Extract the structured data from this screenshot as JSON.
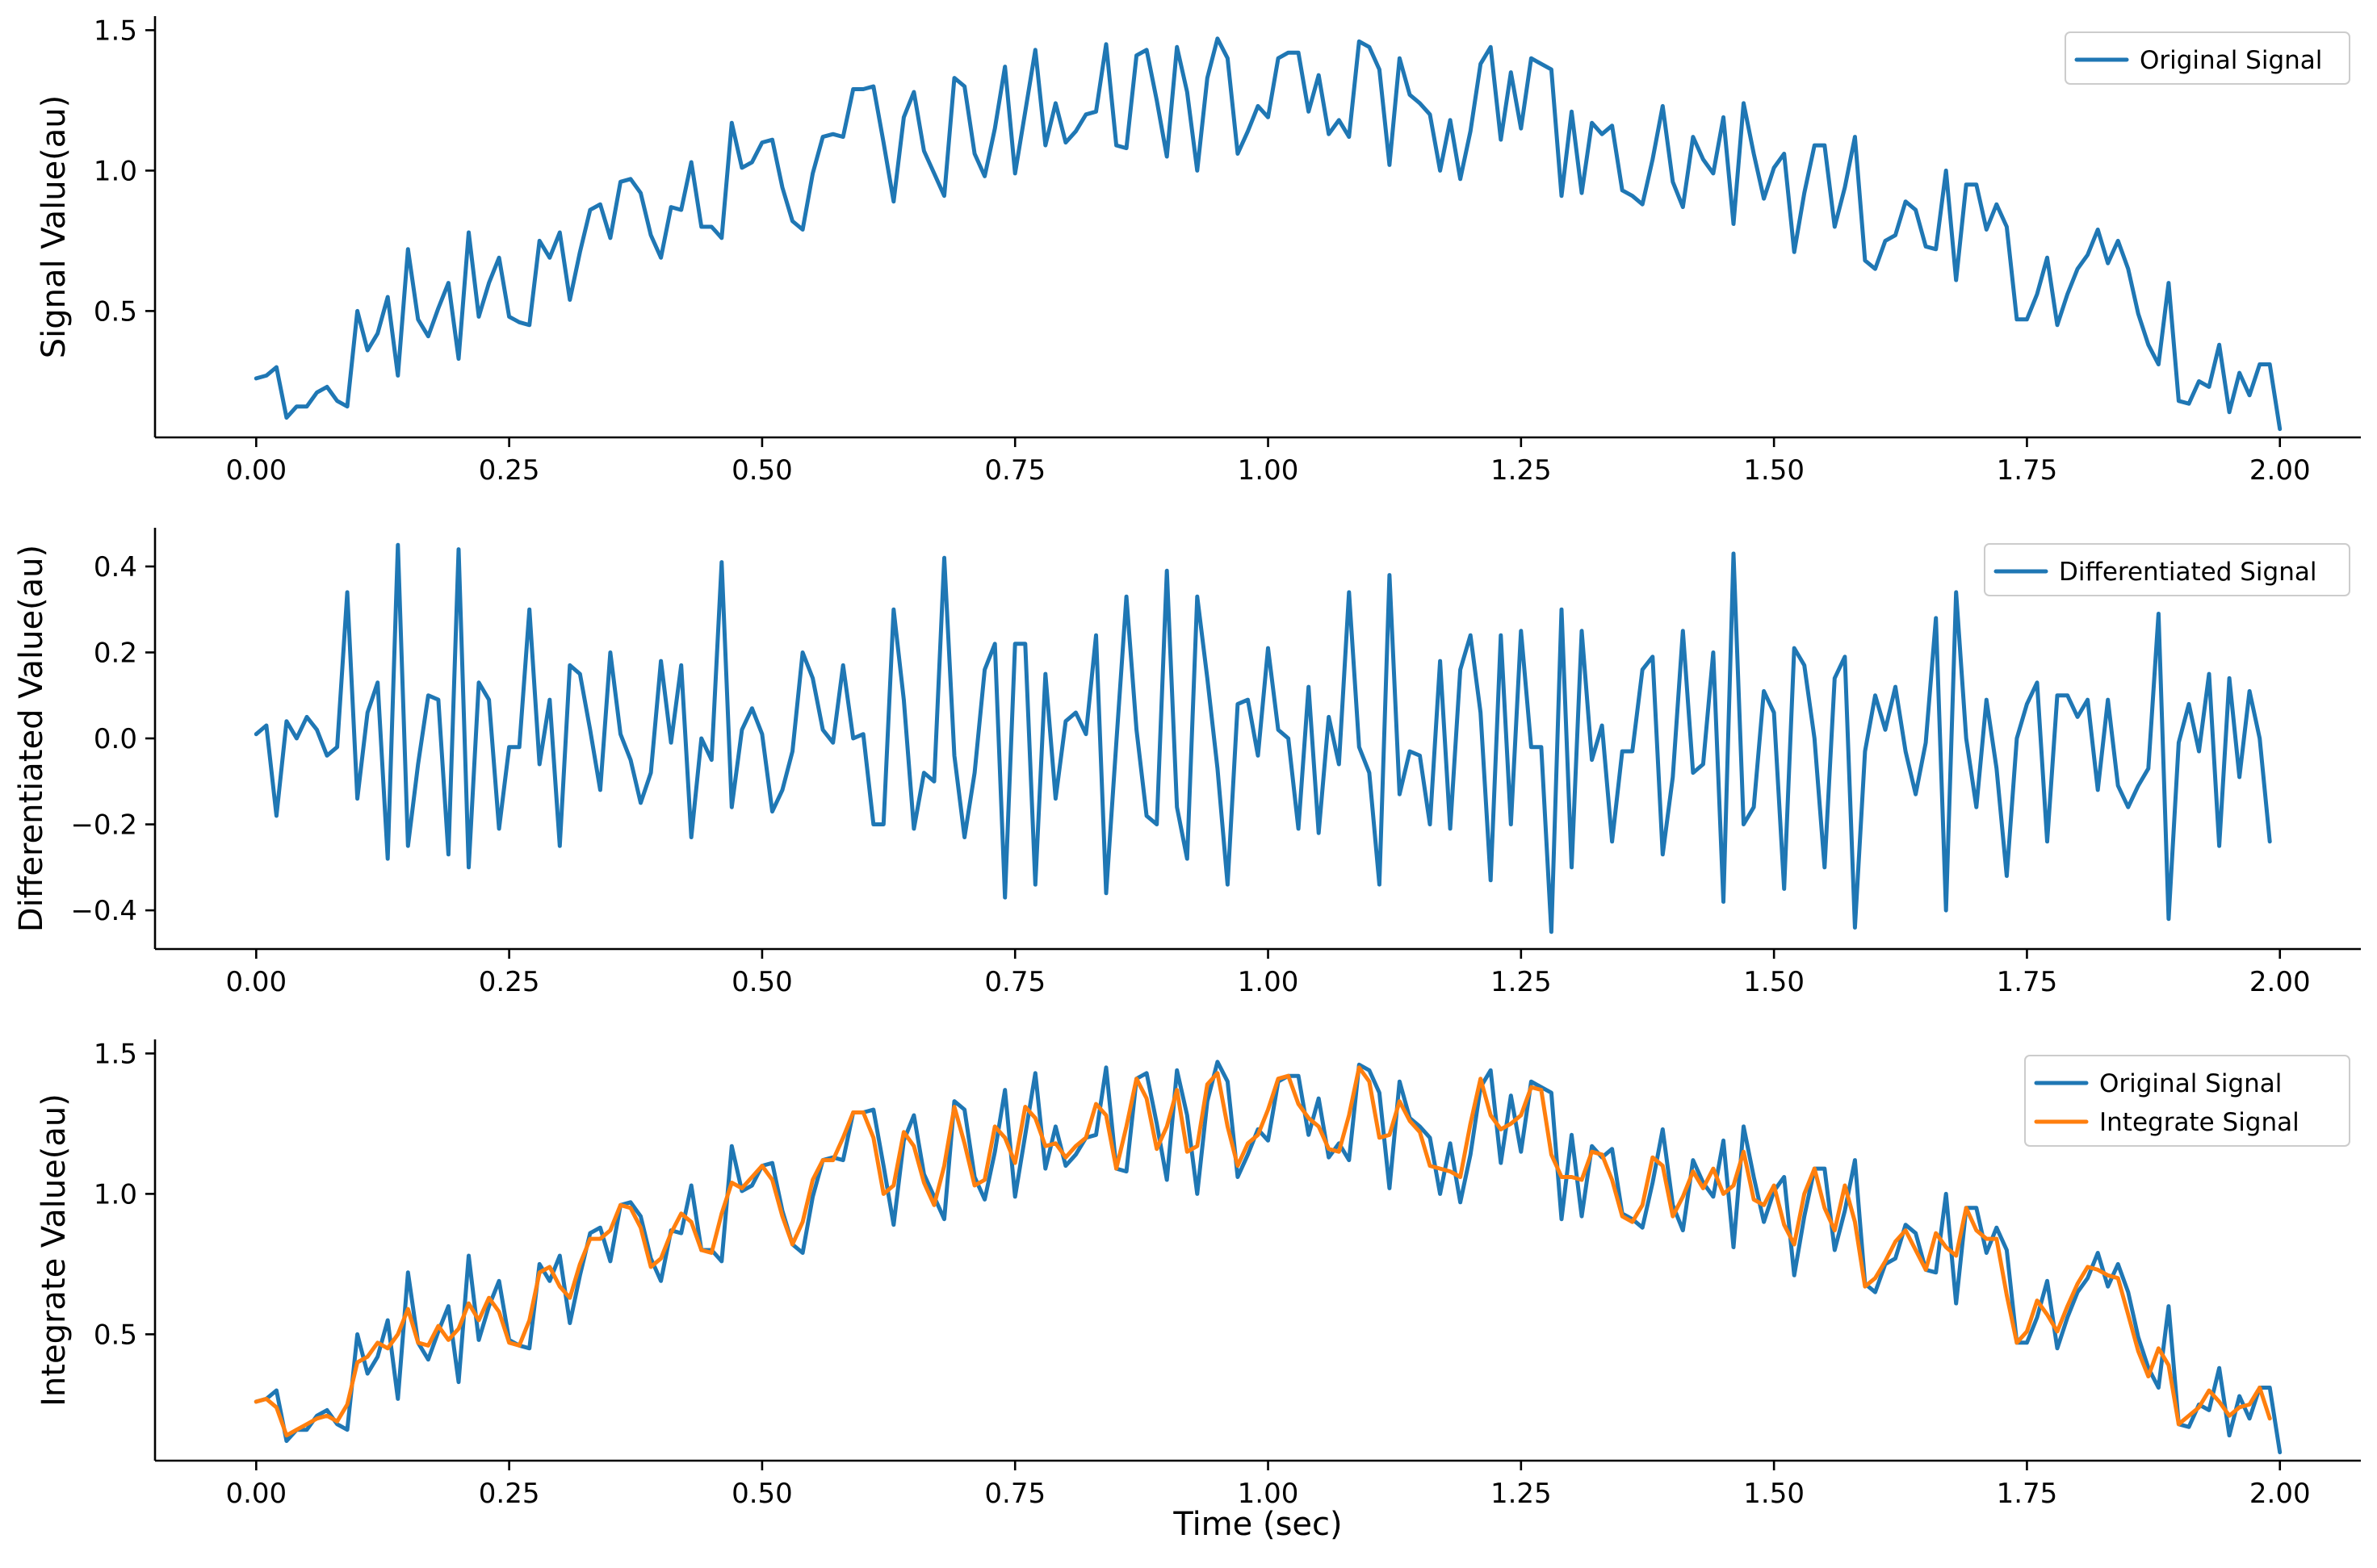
{
  "colors": {
    "blue": "#1f77b4",
    "orange": "#ff7f0e"
  },
  "chart_data": [
    {
      "type": "line",
      "title": "",
      "xlabel": "",
      "ylabel": "Signal Value(au)",
      "xlim": [
        -0.1,
        2.08
      ],
      "ylim": [
        0.05,
        1.55
      ],
      "xticks": [
        0.0,
        0.25,
        0.5,
        0.75,
        1.0,
        1.25,
        1.5,
        1.75,
        2.0
      ],
      "xtick_labels": [
        "0.00",
        "0.25",
        "0.50",
        "0.75",
        "1.00",
        "1.25",
        "1.50",
        "1.75",
        "2.00"
      ],
      "yticks": [
        0.5,
        1.0,
        1.5
      ],
      "ytick_labels": [
        "0.5",
        "1.0",
        "1.5"
      ],
      "legend_position": "top-right",
      "series": [
        {
          "name": "Original Signal",
          "color": "#1f77b4",
          "x_start": 0.0,
          "x_step": 0.01,
          "values": [
            0.26,
            0.27,
            0.3,
            0.12,
            0.16,
            0.16,
            0.21,
            0.23,
            0.18,
            0.16,
            0.5,
            0.36,
            0.42,
            0.55,
            0.27,
            0.72,
            0.47,
            0.41,
            0.51,
            0.6,
            0.33,
            0.78,
            0.48,
            0.6,
            0.69,
            0.48,
            0.46,
            0.45,
            0.75,
            0.69,
            0.78,
            0.54,
            0.71,
            0.86,
            0.88,
            0.76,
            0.96,
            0.97,
            0.92,
            0.77,
            0.69,
            0.87,
            0.86,
            1.03,
            0.8,
            0.8,
            0.76,
            1.17,
            1.01,
            1.03,
            1.1,
            1.11,
            0.94,
            0.82,
            0.79,
            0.99,
            1.12,
            1.13,
            1.12,
            1.29,
            1.29,
            1.3,
            1.1,
            0.89,
            1.19,
            1.28,
            1.07,
            0.99,
            0.91,
            1.33,
            1.3,
            1.06,
            0.98,
            1.15,
            1.37,
            0.99,
            1.21,
            1.43,
            1.09,
            1.24,
            1.1,
            1.14,
            1.2,
            1.21,
            1.45,
            1.09,
            1.08,
            1.41,
            1.43,
            1.25,
            1.05,
            1.44,
            1.28,
            1.0,
            1.33,
            1.47,
            1.4,
            1.06,
            1.14,
            1.23,
            1.19,
            1.4,
            1.42,
            1.42,
            1.21,
            1.34,
            1.13,
            1.18,
            1.12,
            1.46,
            1.44,
            1.36,
            1.02,
            1.4,
            1.27,
            1.24,
            1.2,
            1.0,
            1.18,
            0.97,
            1.14,
            1.38,
            1.44,
            1.11,
            1.35,
            1.15,
            1.4,
            1.38,
            1.36,
            0.91,
            1.21,
            0.92,
            1.17,
            1.13,
            1.16,
            0.93,
            0.91,
            0.88,
            1.04,
            1.23,
            0.96,
            0.87,
            1.12,
            1.04,
            0.99,
            1.19,
            0.81,
            1.24,
            1.06,
            0.9,
            1.01,
            1.06,
            0.71,
            0.92,
            1.09,
            1.09,
            0.8,
            0.94,
            1.12,
            0.68,
            0.65,
            0.75,
            0.77,
            0.89,
            0.86,
            0.73,
            0.72,
            1.0,
            0.61,
            0.95,
            0.95,
            0.79,
            0.88,
            0.8,
            0.47,
            0.47,
            0.56,
            0.69,
            0.45,
            0.56,
            0.65,
            0.7,
            0.79,
            0.67,
            0.75,
            0.65,
            0.49,
            0.38,
            0.31,
            0.6,
            0.18,
            0.17,
            0.25,
            0.23,
            0.38,
            0.14,
            0.28,
            0.2,
            0.31,
            0.31,
            0.08
          ]
        }
      ]
    },
    {
      "type": "line",
      "title": "",
      "xlabel": "",
      "ylabel": "Differentiated Value(au)",
      "xlim": [
        -0.1,
        2.08
      ],
      "ylim": [
        -0.49,
        0.49
      ],
      "xticks": [
        0.0,
        0.25,
        0.5,
        0.75,
        1.0,
        1.25,
        1.5,
        1.75,
        2.0
      ],
      "xtick_labels": [
        "0.00",
        "0.25",
        "0.50",
        "0.75",
        "1.00",
        "1.25",
        "1.50",
        "1.75",
        "2.00"
      ],
      "yticks": [
        -0.4,
        -0.2,
        0.0,
        0.2,
        0.4
      ],
      "ytick_labels": [
        "−0.4",
        "−0.2",
        "0.0",
        "0.2",
        "0.4"
      ],
      "legend_position": "top-right",
      "series": [
        {
          "name": "Differentiated Signal",
          "color": "#1f77b4",
          "x_start": 0.0,
          "x_step": 0.01,
          "values": [
            0.01,
            0.03,
            -0.18,
            0.04,
            0.0,
            0.05,
            0.02,
            -0.04,
            -0.02,
            0.34,
            -0.14,
            0.06,
            0.13,
            -0.28,
            0.45,
            -0.25,
            -0.06,
            0.1,
            0.09,
            -0.27,
            0.44,
            -0.3,
            0.13,
            0.09,
            -0.21,
            -0.02,
            -0.02,
            0.3,
            -0.06,
            0.09,
            -0.25,
            0.17,
            0.15,
            0.02,
            -0.12,
            0.2,
            0.01,
            -0.05,
            -0.15,
            -0.08,
            0.18,
            -0.01,
            0.17,
            -0.23,
            0.0,
            -0.05,
            0.41,
            -0.16,
            0.02,
            0.07,
            0.01,
            -0.17,
            -0.12,
            -0.03,
            0.2,
            0.14,
            0.02,
            -0.01,
            0.17,
            0.0,
            0.01,
            -0.2,
            -0.2,
            0.3,
            0.09,
            -0.21,
            -0.08,
            -0.1,
            0.42,
            -0.04,
            -0.23,
            -0.08,
            0.16,
            0.22,
            -0.37,
            0.22,
            0.22,
            -0.34,
            0.15,
            -0.14,
            0.04,
            0.06,
            0.01,
            0.24,
            -0.36,
            -0.01,
            0.33,
            0.02,
            -0.18,
            -0.2,
            0.39,
            -0.16,
            -0.28,
            0.33,
            0.14,
            -0.07,
            -0.34,
            0.08,
            0.09,
            -0.04,
            0.21,
            0.02,
            0.0,
            -0.21,
            0.12,
            -0.22,
            0.05,
            -0.06,
            0.34,
            -0.02,
            -0.08,
            -0.34,
            0.38,
            -0.13,
            -0.03,
            -0.04,
            -0.2,
            0.18,
            -0.21,
            0.16,
            0.24,
            0.06,
            -0.33,
            0.24,
            -0.2,
            0.25,
            -0.02,
            -0.02,
            -0.45,
            0.3,
            -0.3,
            0.25,
            -0.05,
            0.03,
            -0.24,
            -0.03,
            -0.03,
            0.16,
            0.19,
            -0.27,
            -0.09,
            0.25,
            -0.08,
            -0.06,
            0.2,
            -0.38,
            0.43,
            -0.2,
            -0.16,
            0.11,
            0.06,
            -0.35,
            0.21,
            0.17,
            0.0,
            -0.3,
            0.14,
            0.19,
            -0.44,
            -0.03,
            0.1,
            0.02,
            0.12,
            -0.03,
            -0.13,
            -0.01,
            0.28,
            -0.4,
            0.34,
            0.0,
            -0.16,
            0.09,
            -0.07,
            -0.32,
            0.0,
            0.08,
            0.13,
            -0.24,
            0.1,
            0.1,
            0.05,
            0.09,
            -0.12,
            0.09,
            -0.11,
            -0.16,
            -0.11,
            -0.07,
            0.29,
            -0.42,
            -0.01,
            0.08,
            -0.03,
            0.15,
            -0.25,
            0.14,
            -0.09,
            0.11,
            0.0,
            -0.24
          ]
        }
      ]
    },
    {
      "type": "line",
      "title": "",
      "xlabel": "Time (sec)",
      "ylabel": "Integrate Value(au)",
      "xlim": [
        -0.1,
        2.08
      ],
      "ylim": [
        0.05,
        1.55
      ],
      "xticks": [
        0.0,
        0.25,
        0.5,
        0.75,
        1.0,
        1.25,
        1.5,
        1.75,
        2.0
      ],
      "xtick_labels": [
        "0.00",
        "0.25",
        "0.50",
        "0.75",
        "1.00",
        "1.25",
        "1.50",
        "1.75",
        "2.00"
      ],
      "yticks": [
        0.5,
        1.0,
        1.5
      ],
      "ytick_labels": [
        "0.5",
        "1.0",
        "1.5"
      ],
      "legend_position": "top-right",
      "series": [
        {
          "name": "Original Signal",
          "color": "#1f77b4",
          "x_start": 0.0,
          "x_step": 0.01,
          "values": [
            0.26,
            0.27,
            0.3,
            0.12,
            0.16,
            0.16,
            0.21,
            0.23,
            0.18,
            0.16,
            0.5,
            0.36,
            0.42,
            0.55,
            0.27,
            0.72,
            0.47,
            0.41,
            0.51,
            0.6,
            0.33,
            0.78,
            0.48,
            0.6,
            0.69,
            0.48,
            0.46,
            0.45,
            0.75,
            0.69,
            0.78,
            0.54,
            0.71,
            0.86,
            0.88,
            0.76,
            0.96,
            0.97,
            0.92,
            0.77,
            0.69,
            0.87,
            0.86,
            1.03,
            0.8,
            0.8,
            0.76,
            1.17,
            1.01,
            1.03,
            1.1,
            1.11,
            0.94,
            0.82,
            0.79,
            0.99,
            1.12,
            1.13,
            1.12,
            1.29,
            1.29,
            1.3,
            1.1,
            0.89,
            1.19,
            1.28,
            1.07,
            0.99,
            0.91,
            1.33,
            1.3,
            1.06,
            0.98,
            1.15,
            1.37,
            0.99,
            1.21,
            1.43,
            1.09,
            1.24,
            1.1,
            1.14,
            1.2,
            1.21,
            1.45,
            1.09,
            1.08,
            1.41,
            1.43,
            1.25,
            1.05,
            1.44,
            1.28,
            1.0,
            1.33,
            1.47,
            1.4,
            1.06,
            1.14,
            1.23,
            1.19,
            1.4,
            1.42,
            1.42,
            1.21,
            1.34,
            1.13,
            1.18,
            1.12,
            1.46,
            1.44,
            1.36,
            1.02,
            1.4,
            1.27,
            1.24,
            1.2,
            1.0,
            1.18,
            0.97,
            1.14,
            1.38,
            1.44,
            1.11,
            1.35,
            1.15,
            1.4,
            1.38,
            1.36,
            0.91,
            1.21,
            0.92,
            1.17,
            1.13,
            1.16,
            0.93,
            0.91,
            0.88,
            1.04,
            1.23,
            0.96,
            0.87,
            1.12,
            1.04,
            0.99,
            1.19,
            0.81,
            1.24,
            1.06,
            0.9,
            1.01,
            1.06,
            0.71,
            0.92,
            1.09,
            1.09,
            0.8,
            0.94,
            1.12,
            0.68,
            0.65,
            0.75,
            0.77,
            0.89,
            0.86,
            0.73,
            0.72,
            1.0,
            0.61,
            0.95,
            0.95,
            0.79,
            0.88,
            0.8,
            0.47,
            0.47,
            0.56,
            0.69,
            0.45,
            0.56,
            0.65,
            0.7,
            0.79,
            0.67,
            0.75,
            0.65,
            0.49,
            0.38,
            0.31,
            0.6,
            0.18,
            0.17,
            0.25,
            0.23,
            0.38,
            0.14,
            0.28,
            0.2,
            0.31,
            0.31,
            0.08
          ]
        },
        {
          "name": "Integrate Signal",
          "color": "#ff7f0e",
          "x_start": 0.0,
          "x_step": 0.01,
          "values": [
            0.26,
            0.27,
            0.24,
            0.14,
            0.16,
            0.18,
            0.2,
            0.21,
            0.19,
            0.25,
            0.4,
            0.42,
            0.47,
            0.45,
            0.5,
            0.59,
            0.47,
            0.46,
            0.53,
            0.48,
            0.52,
            0.61,
            0.55,
            0.63,
            0.58,
            0.47,
            0.46,
            0.55,
            0.72,
            0.74,
            0.67,
            0.63,
            0.75,
            0.84,
            0.84,
            0.87,
            0.96,
            0.95,
            0.88,
            0.74,
            0.77,
            0.86,
            0.93,
            0.9,
            0.8,
            0.79,
            0.93,
            1.04,
            1.02,
            1.06,
            1.1,
            1.05,
            0.92,
            0.82,
            0.9,
            1.05,
            1.12,
            1.12,
            1.2,
            1.29,
            1.29,
            1.2,
            1.0,
            1.03,
            1.22,
            1.17,
            1.04,
            0.96,
            1.1,
            1.31,
            1.18,
            1.03,
            1.05,
            1.24,
            1.2,
            1.11,
            1.31,
            1.27,
            1.17,
            1.18,
            1.13,
            1.17,
            1.2,
            1.32,
            1.28,
            1.09,
            1.24,
            1.41,
            1.34,
            1.16,
            1.24,
            1.37,
            1.15,
            1.17,
            1.39,
            1.43,
            1.24,
            1.1,
            1.18,
            1.21,
            1.3,
            1.41,
            1.42,
            1.32,
            1.27,
            1.24,
            1.16,
            1.15,
            1.28,
            1.45,
            1.4,
            1.2,
            1.21,
            1.33,
            1.26,
            1.22,
            1.1,
            1.09,
            1.08,
            1.06,
            1.25,
            1.41,
            1.28,
            1.23,
            1.25,
            1.28,
            1.38,
            1.37,
            1.14,
            1.06,
            1.06,
            1.05,
            1.15,
            1.14,
            1.05,
            0.92,
            0.9,
            0.96,
            1.13,
            1.1,
            0.92,
            0.99,
            1.08,
            1.02,
            1.09,
            1.0,
            1.03,
            1.15,
            0.98,
            0.96,
            1.03,
            0.89,
            0.82,
            1.0,
            1.09,
            0.95,
            0.87,
            1.03,
            0.9,
            0.67,
            0.7,
            0.76,
            0.83,
            0.87,
            0.8,
            0.73,
            0.86,
            0.81,
            0.78,
            0.95,
            0.87,
            0.84,
            0.84,
            0.64,
            0.47,
            0.51,
            0.62,
            0.57,
            0.51,
            0.6,
            0.68,
            0.74,
            0.73,
            0.71,
            0.7,
            0.57,
            0.44,
            0.35,
            0.45,
            0.39,
            0.18,
            0.21,
            0.24,
            0.3,
            0.26,
            0.21,
            0.24,
            0.25,
            0.31,
            0.2
          ]
        }
      ]
    }
  ]
}
